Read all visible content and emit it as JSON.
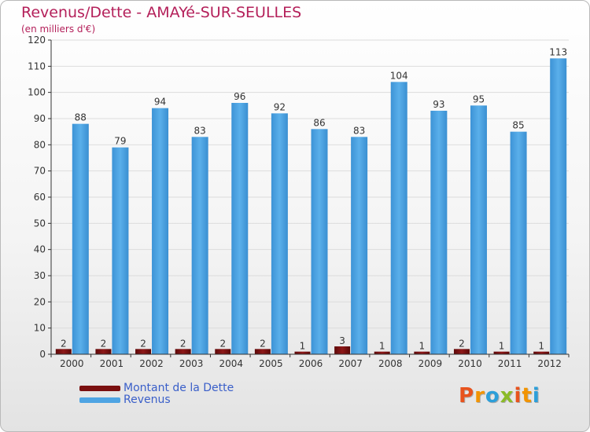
{
  "title": "Revenus/Dette - AMAYé-SUR-SEULLES",
  "subtitle": "(en milliers d'€)",
  "logo": {
    "text": "Proxiti",
    "letters": [
      {
        "ch": "P",
        "color": "#e8531d"
      },
      {
        "ch": "r",
        "color": "#f29400"
      },
      {
        "ch": "o",
        "color": "#2d9fd9"
      },
      {
        "ch": "x",
        "color": "#8bbb27"
      },
      {
        "ch": "i",
        "color": "#e8531d"
      },
      {
        "ch": "t",
        "color": "#f29400"
      },
      {
        "ch": "i",
        "color": "#2d9fd9"
      }
    ]
  },
  "colors": {
    "dette": "#7a0f0f",
    "revenus": "#4ea4e3",
    "axis": "#333333",
    "grid": "#dcdcdc"
  },
  "chart_data": {
    "type": "bar",
    "title": "Revenus/Dette - AMAYé-SUR-SEULLES",
    "subtitle": "(en milliers d'€)",
    "categories": [
      "2000",
      "2001",
      "2002",
      "2003",
      "2004",
      "2005",
      "2006",
      "2007",
      "2008",
      "2009",
      "2010",
      "2011",
      "2012"
    ],
    "series": [
      {
        "name": "Montant de la Dette",
        "values": [
          2,
          2,
          2,
          2,
          2,
          2,
          1,
          3,
          1,
          1,
          2,
          1,
          1
        ]
      },
      {
        "name": "Revenus",
        "values": [
          88,
          79,
          94,
          83,
          96,
          92,
          86,
          83,
          104,
          93,
          95,
          85,
          113
        ]
      }
    ],
    "ylim": [
      0,
      120
    ],
    "yticks": [
      0,
      10,
      20,
      30,
      40,
      50,
      60,
      70,
      80,
      90,
      100,
      110,
      120
    ],
    "grid": true,
    "legend": "bottom-left"
  }
}
